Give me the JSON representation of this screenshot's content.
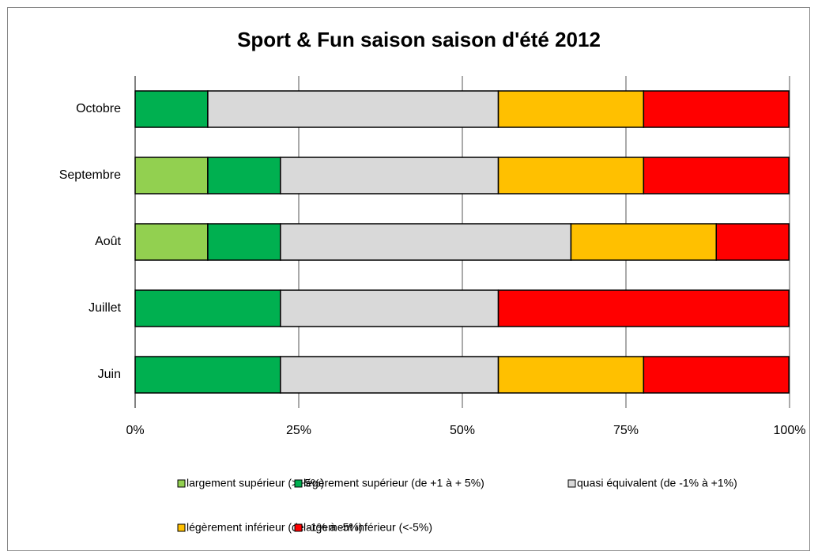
{
  "chart_data": {
    "type": "stacked-bar-horizontal",
    "title": "Sport & Fun saison saison d'été 2012",
    "categories": [
      "Juin",
      "Juillet",
      "Août",
      "Septembre",
      "Octobre"
    ],
    "series": [
      {
        "name": "largement supérieur (>+5%)",
        "color": "#92d050",
        "values": [
          0,
          0,
          11.1,
          11.1,
          0
        ]
      },
      {
        "name": "légèrement supérieur (de +1 à + 5%)",
        "color": "#00b050",
        "values": [
          22.2,
          22.2,
          11.1,
          11.1,
          11.1
        ]
      },
      {
        "name": "quasi équivalent (de -1% à +1%)",
        "color": "#d9d9d9",
        "values": [
          33.3,
          33.3,
          44.4,
          33.3,
          44.4
        ]
      },
      {
        "name": "légèrement inférieur (de -1% à -5%)",
        "color": "#ffc000",
        "values": [
          22.2,
          0,
          22.2,
          22.2,
          22.2
        ]
      },
      {
        "name": "largement inférieur (<-5%)",
        "color": "#ff0000",
        "values": [
          22.2,
          44.4,
          11.1,
          22.2,
          22.2
        ]
      }
    ],
    "xlim": [
      0,
      100
    ],
    "xticks": [
      {
        "value": 0,
        "label": "0%"
      },
      {
        "value": 25,
        "label": "25%"
      },
      {
        "value": 50,
        "label": "50%"
      },
      {
        "value": 75,
        "label": "75%"
      },
      {
        "value": 100,
        "label": "100%"
      }
    ],
    "grid": true,
    "legend": "bottom"
  }
}
